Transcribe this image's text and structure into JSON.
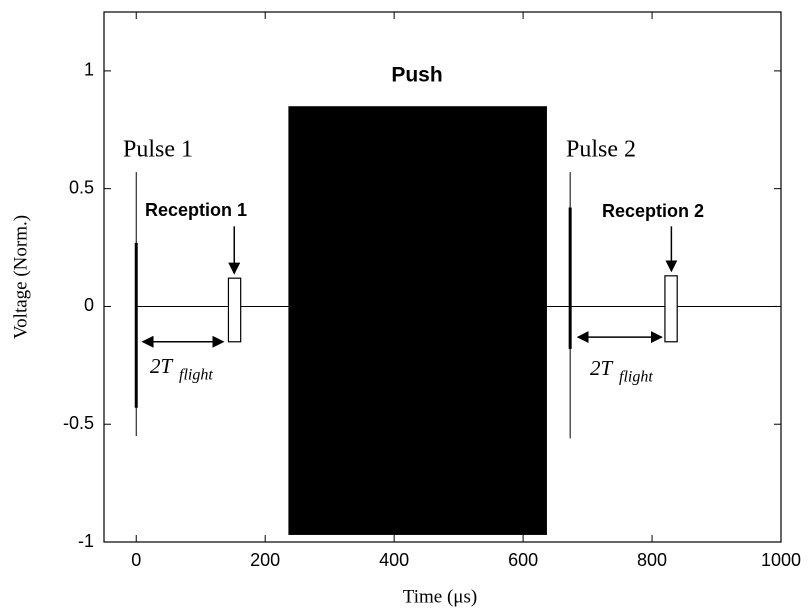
{
  "chart_data": {
    "type": "timing",
    "xlabel": "Time (μs)",
    "ylabel": "Voltage (Norm.)",
    "xlim": [
      -50,
      1000
    ],
    "ylim": [
      -1,
      1.25
    ],
    "xticks": [
      0,
      200,
      400,
      600,
      800,
      1000
    ],
    "yticks": [
      -1,
      -0.5,
      0,
      0.5,
      1
    ],
    "lines": [
      {
        "x": [
          0,
          1000
        ],
        "y": [
          0,
          0
        ],
        "lw": 1
      },
      {
        "x": [
          0,
          0
        ],
        "y": [
          -0.55,
          0.57
        ],
        "lw": 1
      },
      {
        "x": [
          0,
          0
        ],
        "y": [
          -0.43,
          0.27
        ],
        "lw": 3
      },
      {
        "x": [
          673,
          673
        ],
        "y": [
          -0.56,
          0.57
        ],
        "lw": 1
      },
      {
        "x": [
          673,
          673
        ],
        "y": [
          -0.18,
          0.42
        ],
        "lw": 3
      }
    ],
    "boxes": [
      {
        "x": [
          236,
          637
        ],
        "y": [
          -0.97,
          0.85
        ],
        "filled": true
      },
      {
        "x": [
          143,
          162
        ],
        "y": [
          -0.15,
          0.12
        ],
        "filled": false
      },
      {
        "x": [
          820,
          839
        ],
        "y": [
          -0.15,
          0.13
        ],
        "filled": false
      }
    ],
    "arrows": [
      {
        "x": [
          10,
          135
        ],
        "y": [
          -0.15,
          -0.15
        ],
        "heads": "both"
      },
      {
        "x": [
          685,
          815
        ],
        "y": [
          -0.13,
          -0.13
        ],
        "heads": "both"
      },
      {
        "x": [
          152,
          152
        ],
        "y": [
          0.34,
          0.14
        ],
        "heads": "end"
      },
      {
        "x": [
          830,
          830
        ],
        "y": [
          0.34,
          0.15
        ],
        "heads": "end"
      }
    ],
    "annotations": [
      "Push",
      "Pulse 1",
      "Reception 1",
      "Pulse 2",
      "Reception 2"
    ],
    "flight_labels": [
      {
        "main": "2T",
        "sub": "flight"
      },
      {
        "main": "2T",
        "sub": "flight"
      }
    ]
  }
}
